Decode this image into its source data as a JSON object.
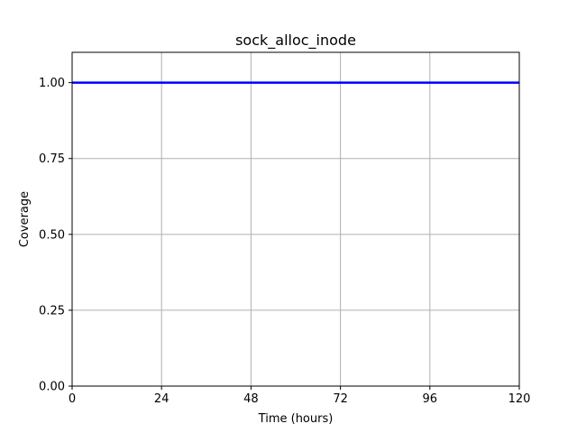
{
  "chart_data": {
    "type": "line",
    "title": "sock_alloc_inode",
    "xlabel": "Time (hours)",
    "ylabel": "Coverage",
    "xlim": [
      0,
      120
    ],
    "ylim": [
      0,
      1.1
    ],
    "xticks": [
      0,
      24,
      48,
      72,
      96,
      120
    ],
    "xtick_labels": [
      "0",
      "24",
      "48",
      "72",
      "96",
      "120"
    ],
    "yticks": [
      0,
      0.25,
      0.5,
      0.75,
      1.0
    ],
    "ytick_labels": [
      "0.00",
      "0.25",
      "0.50",
      "0.75",
      "1.00"
    ],
    "grid": true,
    "series": [
      {
        "name": "coverage",
        "color": "#0000ff",
        "x": [
          0,
          120
        ],
        "y": [
          1.0,
          1.0
        ]
      }
    ]
  }
}
